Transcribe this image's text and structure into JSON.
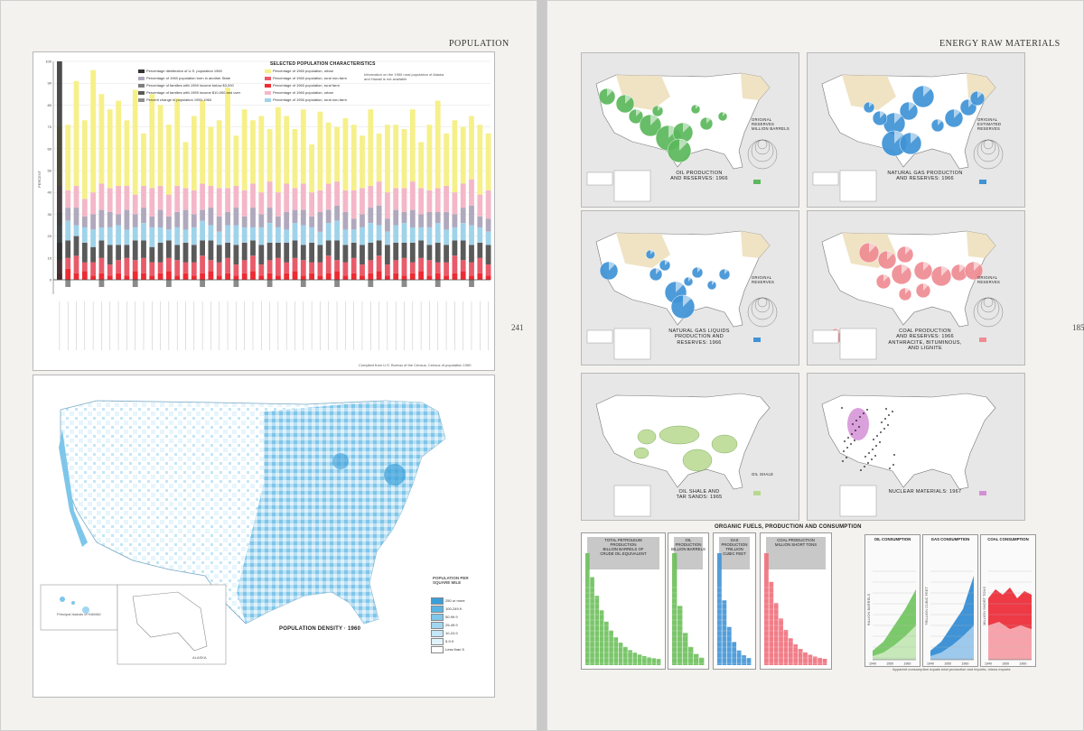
{
  "left": {
    "heading": "POPULATION",
    "folio": "241",
    "bar_chart_title": "SELECTED POPULATION CHARACTERISTICS",
    "ylabel": "PERCENT",
    "yticks": [
      "100",
      "90",
      "80",
      "70",
      "60",
      "50",
      "40",
      "30",
      "20",
      "10",
      "0"
    ],
    "legend": [
      {
        "label": "Percentage distribution of U.S. population 1960",
        "color": "#333333"
      },
      {
        "label": "Percentage of 1960 population born in another State",
        "color": "#b0a9bd"
      },
      {
        "label": "Percentage of families with 1959 income below $3,000",
        "color": "#7d7d7d"
      },
      {
        "label": "Percentage of families with 1959 income $10,000 and over",
        "color": "#5a5a5a"
      },
      {
        "label": "Percent change in population 1950-1960",
        "color": "#8e8e8e"
      },
      {
        "label": "Percentage of 1960 population, urban",
        "color": "#f6f08a"
      },
      {
        "label": "Percentage of 1960 population, rural non-farm",
        "color": "#e85b6a"
      },
      {
        "label": "Percentage of 1960 population, rural farm",
        "color": "#ee2a32"
      },
      {
        "label": "Percentage of 1960 population, urban",
        "color": "#f4b7c8"
      },
      {
        "label": "Percentage of 1950 population, rural non-farm",
        "color": "#9fd3ea"
      }
    ],
    "note": "Information on the 1950 rural population of Alaska and Hawaii is not available",
    "source": "Compiled from U.S. Bureau of the Census, Census of population 1960",
    "map_title": "POPULATION DENSITY · 1960",
    "map_legend_title": "POPULATION PER SQUARE MILE",
    "map_legend": [
      {
        "label": "250 or more",
        "color": "#3a9fd8"
      },
      {
        "label": "100-249.9",
        "color": "#5ab4e2"
      },
      {
        "label": "50-99.9",
        "color": "#7ec6ea"
      },
      {
        "label": "25-49.9",
        "color": "#a2d6f0"
      },
      {
        "label": "10-24.9",
        "color": "#c4e6f6"
      },
      {
        "label": "5-9.9",
        "color": "#e0f2fb"
      },
      {
        "label": "Less than 5",
        "color": "#ffffff"
      }
    ],
    "inset_hawaii": "Principal Islands of HAWAII",
    "inset_alaska": "ALASKA"
  },
  "right": {
    "heading": "ENERGY RAW MATERIALS",
    "folio": "185",
    "source": "Compiled by U.S. Geological Survey, 1968",
    "maps": [
      {
        "title": "OIL PRODUCTION\nAND RESERVES: 1966",
        "color": "#5cb85c",
        "legend_title": "ORIGINAL\nRESERVES\nMILLION BARRELS"
      },
      {
        "title": "NATURAL GAS PRODUCTION\nAND RESERVES: 1966",
        "color": "#3f93d6",
        "legend_title": "ORIGINAL\nESTIMATED\nRESERVES"
      },
      {
        "title": "NATURAL GAS LIQUIDS\nPRODUCTION AND\nRESERVES: 1966",
        "color": "#3f93d6",
        "legend_title": "ORIGINAL\nRESERVES"
      },
      {
        "title": "COAL PRODUCTION\nAND RESERVES: 1966\nANTHRACITE, BITUMINOUS,\nAND LIGNITE",
        "color": "#ef8c93",
        "legend_title": "ORIGINAL\nRESERVES"
      },
      {
        "title": "OIL SHALE AND\nTAR SANDS: 1965",
        "color": "#b7d98f",
        "legend_title": "OIL SHALE"
      },
      {
        "title": "NUCLEAR MATERIALS: 1967",
        "color": "#d48fd6",
        "legend_title": ""
      }
    ],
    "fuels_title": "ORGANIC FUELS, PRODUCTION AND CONSUMPTION",
    "small_charts": [
      {
        "title": "TOTAL PETROLEUM\nPRODUCTION\nBILLION BARRELS OF\nCRUDE OIL EQUIVALENT",
        "color": "#6cbf5a"
      },
      {
        "title": "OIL\nPRODUCTION\nBILLION BARRELS",
        "color": "#6cbf5a"
      },
      {
        "title": "GAS\nPRODUCTION\nTRILLION\nCUBIC FEET",
        "color": "#3f93d6"
      },
      {
        "title": "COAL PRODUCTION\nMILLION SHORT TONS",
        "color": "#ef6f7a"
      }
    ],
    "consumption_charts": [
      {
        "title": "OIL CONSUMPTION",
        "ylabel": "BILLION BARRELS",
        "color": "#7bc96a"
      },
      {
        "title": "GAS CONSUMPTION",
        "ylabel": "TRILLION CUBIC FEET",
        "color": "#3f93d6"
      },
      {
        "title": "COAL CONSUMPTION",
        "ylabel": "MILLION SHORT TONS",
        "color": "#ee3a45"
      }
    ],
    "xyears": [
      "1940",
      "1945",
      "1950",
      "1955",
      "1960",
      "1965"
    ],
    "footnote": "Apparent consumption equals total production and imports, minus exports"
  },
  "chart_data": [
    {
      "type": "bar",
      "title": "SELECTED POPULATION CHARACTERISTICS",
      "ylabel": "PERCENT",
      "ylim": [
        -10,
        100
      ],
      "stacked": true,
      "series_colors": [
        "#ee2a32",
        "#e85b6a",
        "#5a5a5a",
        "#9fd3ea",
        "#b0a9bd",
        "#f4b7c8",
        "#f6f08a"
      ],
      "bars": [
        [
          3,
          6,
          8,
          8,
          6,
          12,
          27
        ],
        [
          5,
          5,
          8,
          9,
          6,
          8,
          30
        ],
        [
          3,
          8,
          9,
          5,
          8,
          10,
          48
        ],
        [
          4,
          4,
          9,
          7,
          5,
          8,
          36
        ],
        [
          2,
          6,
          7,
          8,
          7,
          10,
          56
        ],
        [
          3,
          7,
          8,
          6,
          8,
          12,
          41
        ],
        [
          2,
          5,
          9,
          8,
          7,
          11,
          36
        ],
        [
          3,
          6,
          7,
          9,
          5,
          13,
          39
        ],
        [
          2,
          8,
          6,
          7,
          9,
          11,
          30
        ],
        [
          4,
          5,
          9,
          6,
          6,
          9,
          48
        ],
        [
          3,
          7,
          8,
          8,
          7,
          10,
          24
        ],
        [
          2,
          6,
          7,
          9,
          5,
          13,
          43
        ],
        [
          3,
          5,
          9,
          7,
          8,
          11,
          37
        ],
        [
          4,
          6,
          8,
          5,
          6,
          10,
          32
        ],
        [
          2,
          7,
          7,
          8,
          7,
          12,
          40
        ],
        [
          3,
          5,
          9,
          6,
          9,
          10,
          21
        ],
        [
          2,
          6,
          8,
          8,
          6,
          11,
          34
        ],
        [
          3,
          8,
          7,
          9,
          5,
          12,
          38
        ],
        [
          4,
          5,
          9,
          7,
          8,
          10,
          27
        ],
        [
          2,
          6,
          8,
          6,
          7,
          13,
          31
        ],
        [
          3,
          7,
          7,
          8,
          6,
          11,
          46
        ],
        [
          2,
          5,
          9,
          9,
          8,
          10,
          23
        ],
        [
          3,
          6,
          8,
          7,
          5,
          12,
          37
        ],
        [
          4,
          7,
          7,
          6,
          9,
          11,
          29
        ],
        [
          2,
          5,
          9,
          8,
          6,
          10,
          35
        ],
        [
          3,
          6,
          8,
          9,
          7,
          12,
          24
        ],
        [
          2,
          8,
          7,
          7,
          5,
          11,
          39
        ],
        [
          3,
          5,
          9,
          6,
          8,
          13,
          31
        ],
        [
          4,
          6,
          8,
          8,
          6,
          10,
          27
        ],
        [
          2,
          7,
          7,
          9,
          7,
          12,
          34
        ],
        [
          3,
          5,
          9,
          7,
          5,
          11,
          22
        ],
        [
          2,
          6,
          8,
          6,
          9,
          10,
          36
        ],
        [
          3,
          8,
          7,
          8,
          6,
          12,
          28
        ],
        [
          4,
          5,
          9,
          9,
          7,
          11,
          25
        ],
        [
          2,
          6,
          8,
          7,
          8,
          10,
          33
        ],
        [
          3,
          7,
          7,
          6,
          5,
          13,
          30
        ],
        [
          2,
          5,
          9,
          8,
          6,
          12,
          24
        ],
        [
          3,
          6,
          8,
          9,
          7,
          10,
          35
        ],
        [
          4,
          7,
          7,
          7,
          9,
          11,
          22
        ],
        [
          2,
          5,
          9,
          6,
          6,
          12,
          31
        ],
        [
          3,
          6,
          8,
          8,
          7,
          10,
          29
        ],
        [
          2,
          8,
          7,
          9,
          5,
          11,
          27
        ],
        [
          3,
          5,
          9,
          7,
          8,
          13,
          33
        ],
        [
          4,
          6,
          8,
          6,
          6,
          12,
          21
        ],
        [
          2,
          7,
          7,
          8,
          7,
          10,
          30
        ],
        [
          3,
          5,
          9,
          9,
          5,
          11,
          40
        ],
        [
          2,
          6,
          8,
          7,
          8,
          12,
          24
        ],
        [
          3,
          8,
          7,
          6,
          6,
          10,
          33
        ],
        [
          4,
          5,
          9,
          8,
          7,
          11,
          26
        ],
        [
          2,
          6,
          8,
          9,
          9,
          12,
          29
        ],
        [
          3,
          7,
          7,
          7,
          5,
          10,
          32
        ],
        [
          2,
          5,
          9,
          6,
          6,
          13,
          26
        ]
      ]
    }
  ]
}
